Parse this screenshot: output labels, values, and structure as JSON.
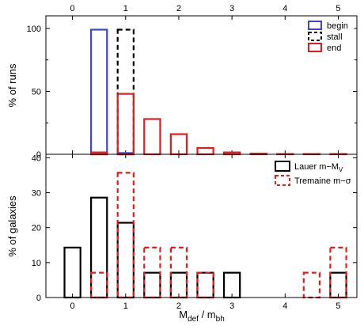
{
  "chart_data": [
    {
      "type": "bar",
      "panel": "top",
      "ylabel": "% of runs",
      "xlim": [
        -0.5,
        5.35
      ],
      "ylim": [
        0,
        110
      ],
      "x_ticks_top": [
        "0",
        "1",
        "2",
        "3",
        "4",
        "5"
      ],
      "y_ticks": [
        "0",
        "50",
        "100"
      ],
      "y_ticks_minor": [
        "25",
        "75"
      ],
      "legend_position": "top-right",
      "series": [
        {
          "name": "begin",
          "color": "#3b46c8",
          "style": "solid",
          "bars": [
            {
              "x": 0.5,
              "value": 99
            },
            {
              "x": 1.0,
              "value": 1
            }
          ]
        },
        {
          "name": "stall",
          "color": "#000000",
          "style": "dashed",
          "bars": [
            {
              "x": 1.0,
              "value": 99
            }
          ]
        },
        {
          "name": "end",
          "color": "#e41a1c",
          "style": "solid",
          "bars": [
            {
              "x": 0.5,
              "value": 1.5
            },
            {
              "x": 1.0,
              "value": 48
            },
            {
              "x": 1.5,
              "value": 28
            },
            {
              "x": 2.0,
              "value": 16
            },
            {
              "x": 2.5,
              "value": 5
            },
            {
              "x": 3.0,
              "value": 1.5
            },
            {
              "x": 3.5,
              "value": 0.5
            },
            {
              "x": 4.0,
              "value": 0.2
            },
            {
              "x": 4.5,
              "value": 0.2
            },
            {
              "x": 5.0,
              "value": 0.2
            }
          ]
        }
      ]
    },
    {
      "type": "bar",
      "panel": "bottom",
      "ylabel": "% of galaxies",
      "xlabel_main": "M",
      "xlabel_sub1": "def",
      "xlabel_mid": " / m",
      "xlabel_sub2": "bh",
      "xlim": [
        -0.5,
        5.35
      ],
      "ylim": [
        0,
        41
      ],
      "x_ticks": [
        "0",
        "1",
        "2",
        "3",
        "4",
        "5"
      ],
      "y_ticks": [
        "0",
        "10",
        "20",
        "30",
        "40"
      ],
      "legend_position": "top-right",
      "series": [
        {
          "name_main": "Lauer m−M",
          "name_sub": "V",
          "color": "#000000",
          "style": "solid",
          "bars": [
            {
              "x": 0.0,
              "value": 14.3
            },
            {
              "x": 0.5,
              "value": 28.6
            },
            {
              "x": 1.0,
              "value": 21.4
            },
            {
              "x": 1.5,
              "value": 7.1
            },
            {
              "x": 2.0,
              "value": 7.1
            },
            {
              "x": 2.5,
              "value": 7.1
            },
            {
              "x": 3.0,
              "value": 7.1
            },
            {
              "x": 5.0,
              "value": 7.1
            }
          ]
        },
        {
          "name": "Tremaine m−σ",
          "color": "#e41a1c",
          "style": "dashed",
          "bars": [
            {
              "x": 0.5,
              "value": 7.1
            },
            {
              "x": 1.0,
              "value": 35.7
            },
            {
              "x": 1.5,
              "value": 14.3
            },
            {
              "x": 2.0,
              "value": 14.3
            },
            {
              "x": 2.5,
              "value": 7.1
            },
            {
              "x": 4.5,
              "value": 7.1
            },
            {
              "x": 5.0,
              "value": 14.3
            }
          ]
        }
      ]
    }
  ]
}
